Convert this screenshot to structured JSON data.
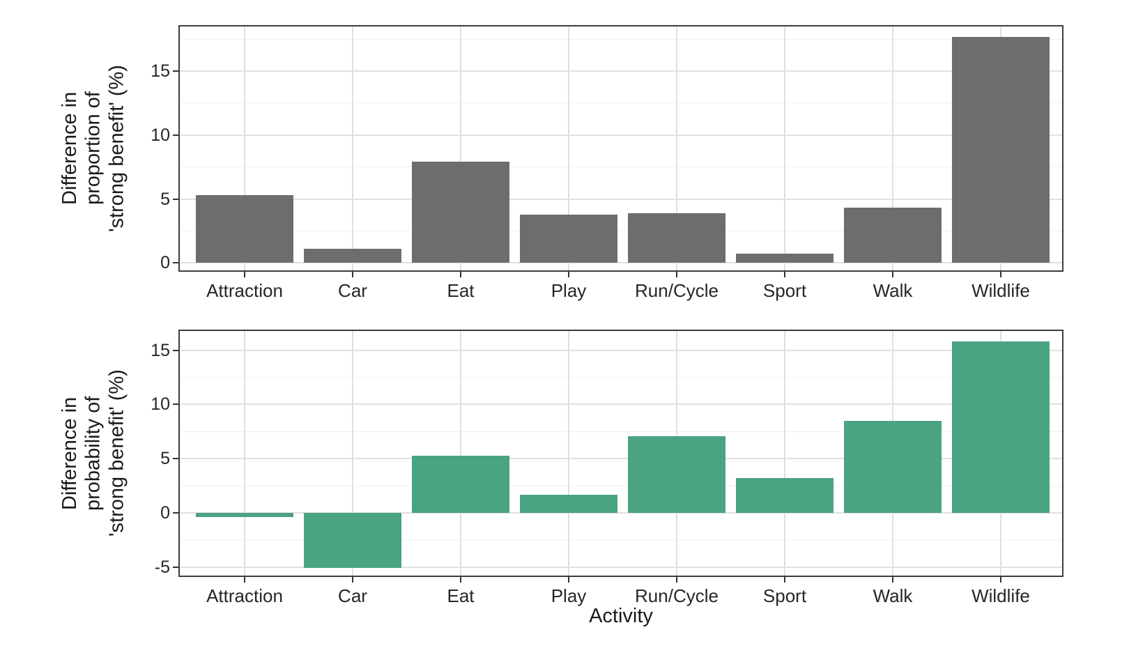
{
  "chart_data": [
    {
      "type": "bar",
      "title": "",
      "categories": [
        "Attraction",
        "Car",
        "Eat",
        "Play",
        "Run/Cycle",
        "Sport",
        "Walk",
        "Wildlife"
      ],
      "values": [
        5.3,
        1.1,
        7.9,
        3.8,
        3.9,
        0.7,
        4.3,
        17.7
      ],
      "xlabel": "",
      "ylabel": "Difference in\nproportion of\n'strong benefit' (%)",
      "yticks": [
        0,
        5,
        10,
        15
      ],
      "ylim": [
        -0.7,
        18.6
      ],
      "bar_color": "#6d6d6d",
      "grid": "on",
      "legend": "none"
    },
    {
      "type": "bar",
      "title": "",
      "categories": [
        "Attraction",
        "Car",
        "Eat",
        "Play",
        "Run/Cycle",
        "Sport",
        "Walk",
        "Wildlife"
      ],
      "values": [
        -0.4,
        -5.1,
        5.3,
        1.7,
        7.1,
        3.2,
        8.5,
        15.8
      ],
      "xlabel": "Activity",
      "ylabel": "Difference in\nprobability of\n'strong benefit' (%)",
      "yticks": [
        -5,
        0,
        5,
        10,
        15
      ],
      "ylim": [
        -5.9,
        16.9
      ],
      "bar_color": "#4aa381",
      "grid": "on",
      "legend": "none"
    }
  ],
  "style": {
    "background": "#ffffff",
    "bar_grey": "#6d6d6d",
    "bar_green": "#4aa381",
    "grid_major": "#e0e0e0",
    "grid_minor": "#f0f0f0",
    "panel_border": "#3d3d3d",
    "tick_color": "#333333",
    "text_color": "#262626"
  }
}
